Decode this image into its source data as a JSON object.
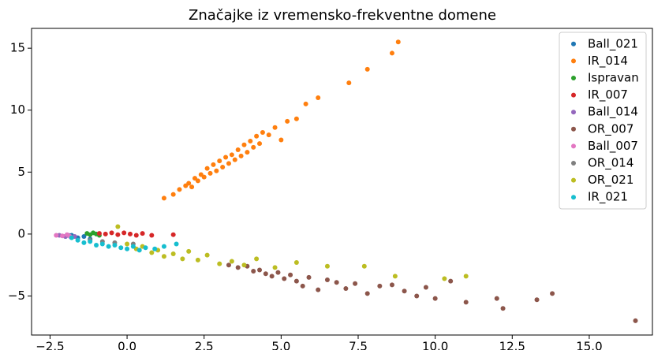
{
  "chart_data": {
    "type": "scatter",
    "title": "Značajke iz vremensko-frekventne domene",
    "xlim": [
      -3.1,
      17.05
    ],
    "ylim": [
      -8.15,
      16.6
    ],
    "xticks": [
      {
        "value": -2.5,
        "label": "−2.5"
      },
      {
        "value": 0,
        "label": "0.0"
      },
      {
        "value": 2.5,
        "label": "2.5"
      },
      {
        "value": 5,
        "label": "5.0"
      },
      {
        "value": 7.5,
        "label": "7.5"
      },
      {
        "value": 10,
        "label": "10.0"
      },
      {
        "value": 12.5,
        "label": "12.5"
      },
      {
        "value": 15,
        "label": "15.0"
      }
    ],
    "yticks": [
      {
        "value": -5,
        "label": "−5"
      },
      0,
      5,
      10,
      15
    ],
    "legend": "upper right",
    "series": [
      {
        "name": "Ball_021",
        "color": "#1f77b4",
        "x": [
          -2.0,
          -1.8,
          -1.6,
          -1.4,
          -1.2
        ],
        "y": [
          -0.2,
          -0.1,
          -0.3,
          -0.2,
          -0.4
        ]
      },
      {
        "name": "IR_014",
        "color": "#ff7f0e",
        "x": [
          1.2,
          1.5,
          1.7,
          1.9,
          2.0,
          2.1,
          2.2,
          2.3,
          2.4,
          2.5,
          2.6,
          2.7,
          2.8,
          2.9,
          3.0,
          3.1,
          3.2,
          3.3,
          3.4,
          3.5,
          3.6,
          3.7,
          3.8,
          3.9,
          4.0,
          4.1,
          4.2,
          4.3,
          4.4,
          4.6,
          4.8,
          5.0,
          5.2,
          5.5,
          5.8,
          6.2,
          7.2,
          7.8,
          8.6,
          8.8
        ],
        "y": [
          2.9,
          3.2,
          3.6,
          3.9,
          4.1,
          3.8,
          4.5,
          4.3,
          4.8,
          4.6,
          5.3,
          4.9,
          5.6,
          5.1,
          5.9,
          5.4,
          6.2,
          5.7,
          6.4,
          6.0,
          6.8,
          6.3,
          7.2,
          6.6,
          7.5,
          7.0,
          7.9,
          7.3,
          8.2,
          8.0,
          8.6,
          7.6,
          9.1,
          9.3,
          10.5,
          11.0,
          12.2,
          13.3,
          14.6,
          15.5
        ]
      },
      {
        "name": "Ispravan",
        "color": "#2ca02c",
        "x": [
          -1.3,
          -1.2,
          -1.1,
          -1.0,
          -0.9
        ],
        "y": [
          0.05,
          -0.05,
          0.1,
          0.0,
          -0.1
        ]
      },
      {
        "name": "IR_007",
        "color": "#d62728",
        "x": [
          -0.9,
          -0.7,
          -0.5,
          -0.3,
          -0.1,
          0.1,
          0.3,
          0.5,
          0.8,
          1.5
        ],
        "y": [
          0.05,
          0.0,
          0.1,
          -0.05,
          0.1,
          0.0,
          -0.1,
          0.05,
          -0.1,
          -0.05
        ]
      },
      {
        "name": "Ball_014",
        "color": "#9467bd",
        "x": [
          -2.2,
          -2.0,
          -1.9,
          -1.7
        ],
        "y": [
          -0.1,
          -0.2,
          -0.1,
          -0.2
        ]
      },
      {
        "name": "OR_007",
        "color": "#8c564b",
        "x": [
          3.3,
          3.6,
          3.9,
          4.1,
          4.3,
          4.5,
          4.7,
          4.9,
          5.1,
          5.3,
          5.5,
          5.7,
          5.9,
          6.2,
          6.5,
          6.8,
          7.1,
          7.4,
          7.8,
          8.2,
          8.6,
          9.0,
          9.4,
          9.7,
          10.0,
          10.5,
          11.0,
          12.0,
          12.2,
          13.3,
          13.8,
          16.5
        ],
        "y": [
          -2.5,
          -2.7,
          -2.6,
          -3.0,
          -2.9,
          -3.2,
          -3.4,
          -3.1,
          -3.6,
          -3.3,
          -3.8,
          -4.2,
          -3.5,
          -4.5,
          -3.7,
          -3.9,
          -4.4,
          -4.0,
          -4.8,
          -4.2,
          -4.1,
          -4.6,
          -5.0,
          -4.3,
          -5.2,
          -3.8,
          -5.5,
          -5.2,
          -6.0,
          -5.3,
          -4.8,
          -7.0
        ]
      },
      {
        "name": "Ball_007",
        "color": "#e377c2",
        "x": [
          -2.3,
          -2.1,
          -1.95,
          -1.85
        ],
        "y": [
          -0.1,
          -0.15,
          -0.05,
          -0.2
        ]
      },
      {
        "name": "OR_014",
        "color": "#7f7f7f",
        "x": [
          -1.2,
          -0.8,
          -0.4,
          0.2
        ],
        "y": [
          -0.5,
          -0.6,
          -0.7,
          -0.8
        ]
      },
      {
        "name": "OR_021",
        "color": "#bcbd22",
        "x": [
          -0.3,
          0.0,
          0.3,
          0.5,
          0.8,
          1.0,
          1.2,
          1.5,
          1.8,
          2.0,
          2.3,
          2.6,
          3.0,
          3.4,
          3.8,
          4.2,
          4.8,
          5.5,
          6.5,
          7.7,
          8.7,
          10.3,
          11.0
        ],
        "y": [
          0.6,
          -0.8,
          -1.2,
          -1.0,
          -1.5,
          -1.3,
          -1.8,
          -1.6,
          -2.0,
          -1.4,
          -2.1,
          -1.7,
          -2.4,
          -2.2,
          -2.5,
          -2.0,
          -2.7,
          -2.3,
          -2.6,
          -2.6,
          -3.4,
          -3.6,
          -3.4
        ]
      },
      {
        "name": "IR_021",
        "color": "#17becf",
        "x": [
          -1.8,
          -1.6,
          -1.4,
          -1.2,
          -1.0,
          -0.8,
          -0.6,
          -0.4,
          -0.2,
          0.0,
          0.2,
          0.4,
          0.6,
          0.9,
          1.2,
          1.6
        ],
        "y": [
          -0.3,
          -0.5,
          -0.7,
          -0.6,
          -0.9,
          -0.8,
          -1.0,
          -0.9,
          -1.1,
          -1.2,
          -1.0,
          -1.3,
          -1.1,
          -1.2,
          -1.0,
          -0.8
        ]
      }
    ]
  }
}
